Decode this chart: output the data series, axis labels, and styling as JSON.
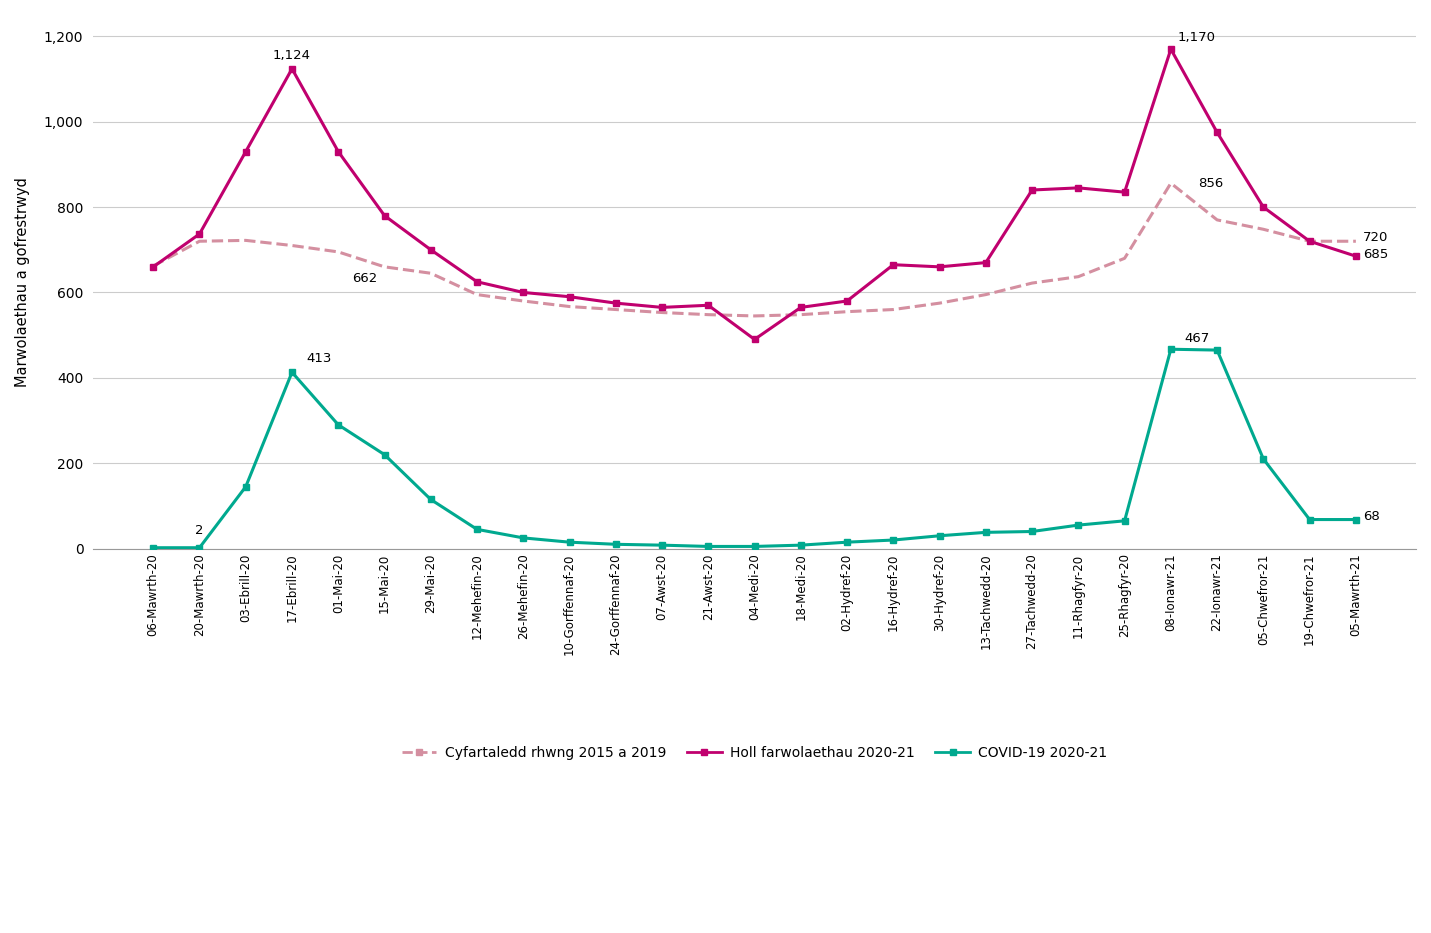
{
  "x_labels": [
    "06-Mawrth-20",
    "20-Mawrth-20",
    "03-Ebrill-20",
    "17-Ebrill-20",
    "01-Mai-20",
    "15-Mai-20",
    "29-Mai-20",
    "12-Mehefin-20",
    "26-Mehefin-20",
    "10-Gorffennaf-20",
    "24-Gorffennaf-20",
    "07-Awst-20",
    "21-Awst-20",
    "04-Medi-20",
    "18-Medi-20",
    "02-Hydref-20",
    "16-Hydref-20",
    "30-Hydref-20",
    "13-Tachwedd-20",
    "27-Tachwedd-20",
    "11-Rhagfyr-20",
    "25-Rhagfyr-20",
    "08-Ionawr-21",
    "22-Ionawr-21",
    "05-Chwefror-21",
    "19-Chwefror-21",
    "05-Mawrth-21"
  ],
  "all_deaths": [
    660,
    737,
    930,
    1124,
    930,
    780,
    700,
    625,
    600,
    590,
    575,
    565,
    570,
    490,
    565,
    580,
    665,
    660,
    670,
    840,
    845,
    835,
    1170,
    975,
    800,
    720,
    685
  ],
  "avg_2015_2019": [
    662,
    720,
    722,
    710,
    695,
    660,
    645,
    595,
    580,
    567,
    560,
    553,
    548,
    545,
    548,
    555,
    560,
    575,
    595,
    622,
    637,
    680,
    856,
    770,
    748,
    720,
    720
  ],
  "covid_19": [
    2,
    2,
    145,
    413,
    290,
    220,
    115,
    45,
    25,
    15,
    10,
    8,
    5,
    5,
    8,
    15,
    20,
    30,
    38,
    40,
    55,
    65,
    467,
    465,
    210,
    68,
    68
  ],
  "ylabel": "Marwolaethau a gofrestrwyd",
  "ylim": [
    0,
    1250
  ],
  "yticks": [
    0,
    200,
    400,
    600,
    800,
    1000,
    1200
  ],
  "line_all_deaths_color": "#c0006e",
  "line_avg_color": "#d48fa0",
  "line_covid_color": "#00a98f",
  "background_color": "#ffffff",
  "legend_labels": [
    "Cyfartaledd rhwng 2015 a 2019",
    "Holl farwolaethau 2020-21",
    "COVID-19 2020-21"
  ],
  "annot_1124_idx": 3,
  "annot_662_idx": 4,
  "annot_413_idx": 3,
  "annot_2_idx": 1,
  "annot_1170_idx": 22,
  "annot_856_idx": 22,
  "annot_467_idx": 22,
  "annot_720_idx": 25,
  "annot_685_idx": 26,
  "annot_68_idx": 26
}
